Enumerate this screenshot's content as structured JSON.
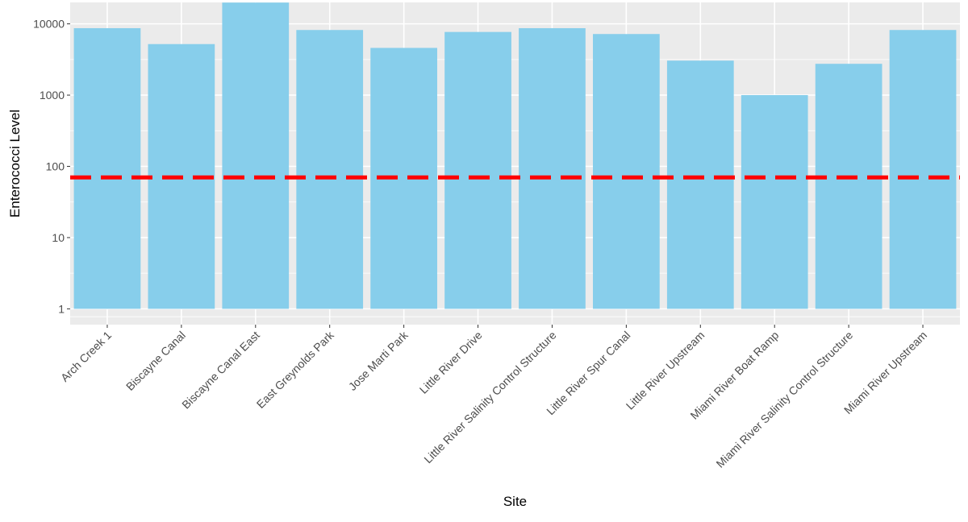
{
  "chart_data": {
    "type": "bar",
    "title": "",
    "xlabel": "Site",
    "ylabel": "Enterococci Level",
    "y_scale": "log10",
    "ylim": [
      0.6,
      20000
    ],
    "y_ticks": [
      1,
      10,
      100,
      1000,
      10000
    ],
    "y_tick_labels": [
      "1",
      "10",
      "100",
      "1000",
      "10000"
    ],
    "grid": true,
    "legend": "none",
    "categories": [
      "Arch Creek 1",
      "Biscayne Canal",
      "Biscayne Canal East",
      "East Greynolds Park",
      "Jose Marti Park",
      "Little River Drive",
      "Little River Salinity Control Structure",
      "Little River Spur Canal",
      "Little River Upstream",
      "Miami River Boat Ramp",
      "Miami River Salinity Control Structure",
      "Miami River Upstream"
    ],
    "values": [
      8700,
      5200,
      19900,
      8200,
      4600,
      7700,
      8700,
      7200,
      3050,
      1000,
      2750,
      8200
    ],
    "reference_line": {
      "value": 70,
      "style": "dashed",
      "color": "#ff0000"
    },
    "colors": {
      "bar": "#87ceeb",
      "panel_background": "#ebebeb",
      "grid": "#ffffff"
    }
  }
}
